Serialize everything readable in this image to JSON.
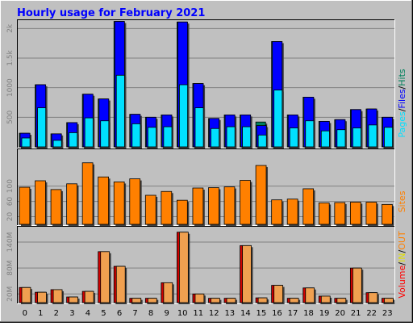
{
  "title": "Hourly usage for February 2021",
  "colors": {
    "frame": "#c0c0c0",
    "title": "#0000ff",
    "hits": "#00805c",
    "files": "#0000ff",
    "pages": "#00e0ff",
    "sites": "#ff8000",
    "kbytes_in": "#d00000",
    "kbytes_out": "#f0a050",
    "volume": "#ff0000",
    "in_label": "#e0e000",
    "out_label": "#ff8000"
  },
  "legends": {
    "panel1": [
      "Pages",
      "/",
      "Files",
      "/",
      "Hits"
    ],
    "panel2": [
      "Sites"
    ],
    "panel3": [
      "Volume",
      "/",
      "IN",
      "/",
      "OUT"
    ]
  },
  "chart_data": [
    {
      "type": "bar",
      "title": "Hits / Files / Pages",
      "categories": [
        "0",
        "1",
        "2",
        "3",
        "4",
        "5",
        "6",
        "7",
        "8",
        "9",
        "10",
        "11",
        "12",
        "13",
        "14",
        "15",
        "16",
        "17",
        "18",
        "19",
        "20",
        "21",
        "22",
        "23"
      ],
      "ylim": [
        0,
        2100
      ],
      "yticks": [
        500,
        1000,
        1500,
        2000
      ],
      "ytick_labels": [
        "500",
        "1000",
        "1.5k",
        "2k"
      ],
      "series": [
        {
          "name": "Hits",
          "values": [
            230,
            1050,
            220,
            410,
            890,
            810,
            2120,
            550,
            500,
            540,
            2110,
            1070,
            480,
            540,
            540,
            420,
            1780,
            540,
            840,
            430,
            460,
            630,
            640,
            500
          ]
        },
        {
          "name": "Files",
          "values": [
            230,
            1050,
            220,
            410,
            890,
            810,
            2120,
            550,
            500,
            540,
            2110,
            1070,
            480,
            540,
            540,
            360,
            1780,
            540,
            840,
            430,
            460,
            630,
            640,
            500
          ]
        },
        {
          "name": "Pages",
          "values": [
            150,
            660,
            110,
            240,
            490,
            440,
            1210,
            390,
            330,
            340,
            1050,
            660,
            310,
            340,
            340,
            200,
            960,
            320,
            440,
            270,
            290,
            320,
            370,
            330
          ]
        }
      ]
    },
    {
      "type": "bar",
      "title": "Sites",
      "categories": [
        "0",
        "1",
        "2",
        "3",
        "4",
        "5",
        "6",
        "7",
        "8",
        "9",
        "10",
        "11",
        "12",
        "13",
        "14",
        "15",
        "16",
        "17",
        "18",
        "19",
        "20",
        "21",
        "22",
        "23"
      ],
      "ylim": [
        0,
        190
      ],
      "yticks": [
        20,
        60,
        100
      ],
      "ytick_labels": [
        "20",
        "60",
        "100"
      ],
      "series": [
        {
          "name": "Sites",
          "values": [
            97,
            114,
            91,
            106,
            161,
            124,
            111,
            119,
            76,
            86,
            63,
            95,
            96,
            98,
            115,
            154,
            64,
            66,
            93,
            56,
            57,
            58,
            58,
            52
          ]
        }
      ]
    },
    {
      "type": "bar",
      "title": "Volume",
      "categories": [
        "0",
        "1",
        "2",
        "3",
        "4",
        "5",
        "6",
        "7",
        "8",
        "9",
        "10",
        "11",
        "12",
        "13",
        "14",
        "15",
        "16",
        "17",
        "18",
        "19",
        "20",
        "21",
        "22",
        "23"
      ],
      "ylim": [
        0,
        170
      ],
      "yticks": [
        20,
        80,
        140
      ],
      "ytick_labels": [
        "20M",
        "80M",
        "140M"
      ],
      "series": [
        {
          "name": "IN",
          "values": [
            35,
            24,
            30,
            13,
            26,
            118,
            84,
            10,
            10,
            46,
            163,
            20,
            10,
            10,
            132,
            11,
            40,
            10,
            34,
            15,
            10,
            80,
            23,
            10
          ]
        },
        {
          "name": "OUT",
          "values": [
            35,
            24,
            30,
            13,
            26,
            118,
            84,
            10,
            10,
            46,
            163,
            20,
            10,
            10,
            132,
            11,
            40,
            10,
            34,
            15,
            10,
            80,
            23,
            10
          ]
        }
      ]
    }
  ]
}
